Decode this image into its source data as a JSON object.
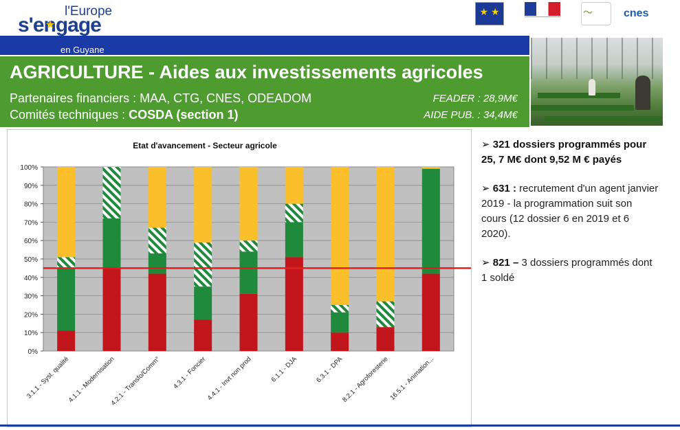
{
  "header": {
    "logo_line1": "l'Europe",
    "logo_line2": "s'engage",
    "logo_line3": "en Guyane",
    "partner_logos": [
      "eu-flag-icon",
      "republique-francaise-icon",
      "collectivite-guyane-icon",
      "cnes-icon"
    ],
    "cnes_text": "cnes"
  },
  "banner": {
    "title": "AGRICULTURE - Aides aux investissements agricoles",
    "partners_label": "Partenaires financiers : MAA, CTG, CNES, ODEADOM",
    "committees_label": "Comités techniques : ",
    "committees_value": "COSDA (section 1)",
    "feader": "FEADER : 28,9M€",
    "aide_pub": "AIDE PUB. : 34,4M€"
  },
  "colors": {
    "blue_band": "#1a3aa5",
    "green_band": "#4e9b2f",
    "bar_red": "#c0161c",
    "bar_green": "#1f8a3c",
    "bar_hatched": "#1f8a3c",
    "bar_yellow": "#fbbf2b",
    "reference_line": "#e02020",
    "plot_bg": "#c0c0c0"
  },
  "chart_data": {
    "type": "bar",
    "stacked": true,
    "title": "Etat d'avancement - Secteur agricole",
    "categories": [
      "3.1.1 - Syst. qualité",
      "4.1.1 - Modernisation",
      "4.2.1 - Transfo/Comm°",
      "4.3.1 - Foncier",
      "4.4.1 - Invt non prod",
      "6.1.1 - DJA",
      "6.3.1 - DPA",
      "8.2.1 - Agroforesterie",
      "16.5.1 - Animation..."
    ],
    "series": [
      {
        "name": "red",
        "values": [
          11,
          45,
          42,
          17,
          31,
          51,
          10,
          13,
          42
        ]
      },
      {
        "name": "green",
        "values": [
          34,
          27,
          11,
          18,
          23,
          19,
          11,
          0,
          57
        ]
      },
      {
        "name": "hatched",
        "values": [
          6,
          28,
          14,
          24,
          6,
          10,
          4,
          14,
          0
        ]
      },
      {
        "name": "yellow",
        "values": [
          49,
          0,
          33,
          41,
          40,
          20,
          75,
          73,
          1
        ]
      }
    ],
    "reference_line": 45,
    "ylim": [
      0,
      100
    ],
    "yticks": [
      "0%",
      "10%",
      "20%",
      "30%",
      "40%",
      "50%",
      "60%",
      "70%",
      "80%",
      "90%",
      "100%"
    ],
    "xlabel": "",
    "ylabel": ""
  },
  "bullets": [
    {
      "lead": "321 dossiers programmés pour 25, 7 M€ dont  9,52 M € payés",
      "rest": ""
    },
    {
      "lead": "631 :",
      "rest": " recrutement d'un agent janvier 2019 -  la programmation suit son cours (12 dossier 6 en 2019 et 6 2020)."
    },
    {
      "lead": "821 –",
      "rest": " 3 dossiers programmés dont 1 soldé"
    }
  ],
  "bullet_marker": "➢"
}
